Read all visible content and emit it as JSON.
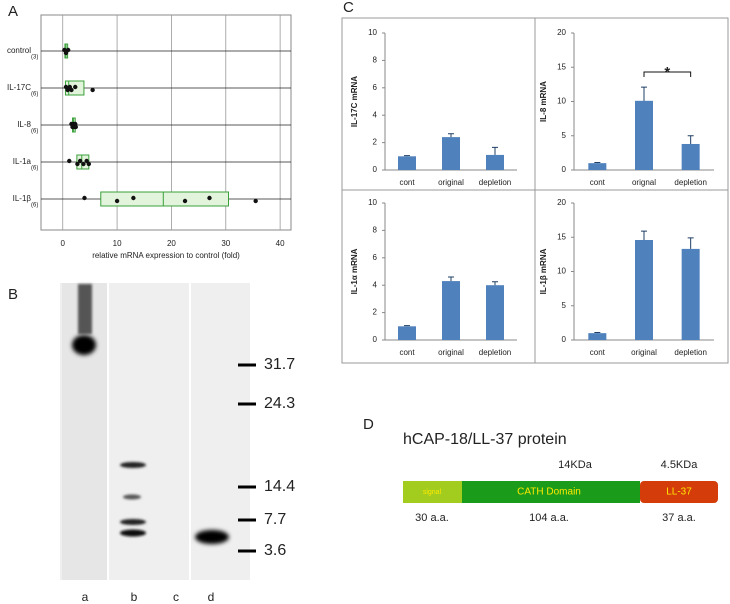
{
  "panel_labels": [
    "A",
    "B",
    "C",
    "D"
  ],
  "chart_data": [
    {
      "type": "box",
      "categories": [
        "control",
        "IL-17C",
        "IL-8",
        "IL-1a",
        "IL-1β"
      ],
      "category_notes": [
        "(3)",
        "(6)",
        "(6)",
        "(6)",
        "(6)"
      ],
      "points": [
        [
          0.3,
          0.6,
          1.0
        ],
        [
          0.6,
          0.9,
          1.3,
          1.6,
          2.3,
          5.5
        ],
        [
          1.6,
          1.8,
          2.0,
          2.1,
          2.3,
          2.4
        ],
        [
          1.2,
          2.7,
          3.2,
          3.8,
          4.4,
          4.8
        ],
        [
          4.0,
          10.0,
          13.0,
          22.5,
          27.0,
          35.5
        ]
      ],
      "boxes": [
        [
          0.4,
          0.6,
          0.9
        ],
        [
          0.5,
          1.1,
          3.9
        ],
        [
          1.8,
          2.0,
          2.3
        ],
        [
          2.6,
          3.5,
          4.8
        ],
        [
          7.0,
          18.5,
          30.5
        ]
      ],
      "xlabel": "relative mRNA expression to control (fold)",
      "xlim": [
        -4,
        42
      ],
      "xticks": [
        0,
        10,
        20,
        30,
        40
      ],
      "grid": true,
      "color": "#111111",
      "box_color": "#e3f4dc",
      "box_edge": "#3aa03a"
    },
    {
      "type": "bar",
      "ylabel": "IL-17C mRNA",
      "categories": [
        "cont",
        "original",
        "depletion"
      ],
      "values": [
        1.0,
        2.4,
        1.1
      ],
      "errors": [
        0.05,
        0.25,
        0.55
      ],
      "ylim": [
        0,
        10
      ],
      "yticks": [
        0,
        2,
        4,
        6,
        8,
        10
      ],
      "color": "#4f81bd",
      "grid": false
    },
    {
      "type": "bar",
      "ylabel": "IL-8 mRNA",
      "categories": [
        "cont",
        "orignal",
        "depletion"
      ],
      "values": [
        1.0,
        10.1,
        3.8
      ],
      "errors": [
        0.1,
        2.0,
        1.2
      ],
      "ylim": [
        0,
        20
      ],
      "yticks": [
        0,
        5,
        10,
        15,
        20
      ],
      "color": "#4f81bd",
      "grid": false,
      "annotation": "*"
    },
    {
      "type": "bar",
      "ylabel": "IL-1α mRNA",
      "categories": [
        "cont",
        "original",
        "depletion"
      ],
      "values": [
        1.0,
        4.3,
        4.0
      ],
      "errors": [
        0.05,
        0.3,
        0.25
      ],
      "ylim": [
        0,
        10
      ],
      "yticks": [
        0,
        2,
        4,
        6,
        8,
        10
      ],
      "color": "#4f81bd",
      "grid": false
    },
    {
      "type": "bar",
      "ylabel": "IL-1β mRNA",
      "categories": [
        "cont",
        "original",
        "depletion"
      ],
      "values": [
        1.0,
        14.6,
        13.3
      ],
      "errors": [
        0.1,
        1.3,
        1.6
      ],
      "ylim": [
        0,
        20
      ],
      "yticks": [
        0,
        5,
        10,
        15,
        20
      ],
      "color": "#4f81bd",
      "grid": false
    }
  ],
  "gel": {
    "lanes": [
      "a",
      "b",
      "c",
      "d"
    ],
    "markers": [
      31.7,
      24.3,
      14.4,
      7.7,
      3.6
    ]
  },
  "protein": {
    "title": "hCAP-18/LL-37 protein",
    "masses": [
      "14KDa",
      "4.5KDa"
    ],
    "domains": [
      "signal",
      "CATH Domain",
      "LL-37"
    ],
    "lengths": [
      "30 a.a.",
      "104 a.a.",
      "37 a.a."
    ]
  }
}
